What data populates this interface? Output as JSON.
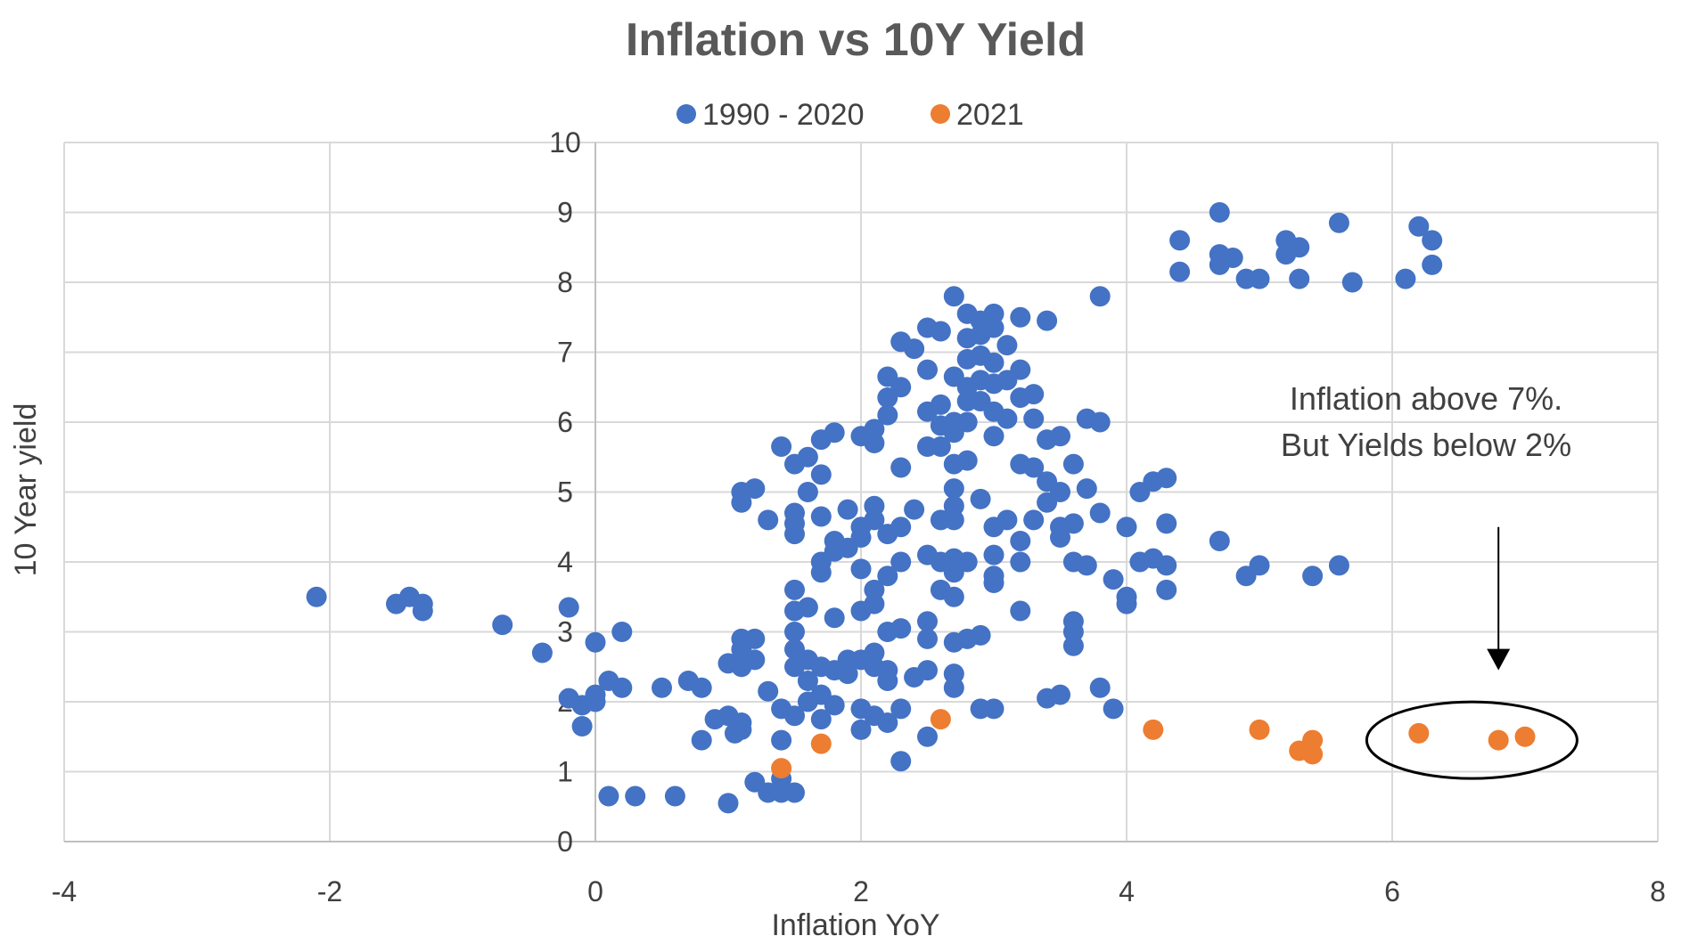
{
  "chart_data": {
    "type": "scatter",
    "title": "Inflation vs 10Y Yield",
    "xlabel": "Inflation YoY",
    "ylabel": "10 Year yield",
    "xlim": [
      -4,
      8
    ],
    "ylim": [
      0,
      10
    ],
    "x_ticks": [
      -4,
      -2,
      0,
      2,
      4,
      6,
      8
    ],
    "y_ticks": [
      0,
      1,
      2,
      3,
      4,
      5,
      6,
      7,
      8,
      9,
      10
    ],
    "grid": true,
    "legend_position": "top",
    "annotation": {
      "lines": [
        "Inflation above 7%.",
        "But Yields below 2%"
      ],
      "circle_center": [
        6.6,
        1.45
      ],
      "arrow_x": 6.8,
      "arrow_from_y": 4.5,
      "arrow_to_y": 2.45
    },
    "series": [
      {
        "name": "1990 - 2020",
        "color": "#4472C4",
        "points": [
          [
            -2.1,
            3.5
          ],
          [
            -1.5,
            3.4
          ],
          [
            -1.4,
            3.5
          ],
          [
            -1.3,
            3.4
          ],
          [
            -1.3,
            3.3
          ],
          [
            -0.7,
            3.1
          ],
          [
            -0.4,
            2.7
          ],
          [
            -0.2,
            3.35
          ],
          [
            -0.2,
            2.05
          ],
          [
            -0.1,
            1.95
          ],
          [
            -0.1,
            1.65
          ],
          [
            0,
            2.0
          ],
          [
            0,
            2.85
          ],
          [
            0,
            2.1
          ],
          [
            0.1,
            2.3
          ],
          [
            0.1,
            0.65
          ],
          [
            0.2,
            2.2
          ],
          [
            0.2,
            3.0
          ],
          [
            0.3,
            0.65
          ],
          [
            0.5,
            2.2
          ],
          [
            0.6,
            0.65
          ],
          [
            0.7,
            2.3
          ],
          [
            0.8,
            2.2
          ],
          [
            0.8,
            1.45
          ],
          [
            0.9,
            1.75
          ],
          [
            1.0,
            1.8
          ],
          [
            1.0,
            0.55
          ],
          [
            1.0,
            2.55
          ],
          [
            1.05,
            1.55
          ],
          [
            1.1,
            5.0
          ],
          [
            1.1,
            4.85
          ],
          [
            1.1,
            2.9
          ],
          [
            1.1,
            2.75
          ],
          [
            1.1,
            2.5
          ],
          [
            1.1,
            1.6
          ],
          [
            1.1,
            1.7
          ],
          [
            1.2,
            5.05
          ],
          [
            1.2,
            2.9
          ],
          [
            1.2,
            2.6
          ],
          [
            1.2,
            0.85
          ],
          [
            1.3,
            0.7
          ],
          [
            1.3,
            2.15
          ],
          [
            1.3,
            4.6
          ],
          [
            1.4,
            5.65
          ],
          [
            1.4,
            1.9
          ],
          [
            1.4,
            1.45
          ],
          [
            1.4,
            0.9
          ],
          [
            1.4,
            0.7
          ],
          [
            1.5,
            5.4
          ],
          [
            1.5,
            4.7
          ],
          [
            1.5,
            4.55
          ],
          [
            1.5,
            4.4
          ],
          [
            1.5,
            3.6
          ],
          [
            1.5,
            3.3
          ],
          [
            1.5,
            3.0
          ],
          [
            1.5,
            2.75
          ],
          [
            1.5,
            2.5
          ],
          [
            1.5,
            1.8
          ],
          [
            1.5,
            0.7
          ],
          [
            1.6,
            5.5
          ],
          [
            1.6,
            5.0
          ],
          [
            1.6,
            3.35
          ],
          [
            1.6,
            2.6
          ],
          [
            1.6,
            2.3
          ],
          [
            1.6,
            2.0
          ],
          [
            1.7,
            5.75
          ],
          [
            1.7,
            5.25
          ],
          [
            1.7,
            4.65
          ],
          [
            1.7,
            4.0
          ],
          [
            1.7,
            3.85
          ],
          [
            1.7,
            2.5
          ],
          [
            1.7,
            2.1
          ],
          [
            1.7,
            1.75
          ],
          [
            1.8,
            5.85
          ],
          [
            1.8,
            4.3
          ],
          [
            1.8,
            4.15
          ],
          [
            1.8,
            3.2
          ],
          [
            1.8,
            2.45
          ],
          [
            1.8,
            1.95
          ],
          [
            1.9,
            4.75
          ],
          [
            1.9,
            4.2
          ],
          [
            1.9,
            2.6
          ],
          [
            1.9,
            2.4
          ],
          [
            2.0,
            5.8
          ],
          [
            2.0,
            4.5
          ],
          [
            2.0,
            4.35
          ],
          [
            2.0,
            3.9
          ],
          [
            2.0,
            3.3
          ],
          [
            2.0,
            2.6
          ],
          [
            2.0,
            1.9
          ],
          [
            2.0,
            1.6
          ],
          [
            2.1,
            5.9
          ],
          [
            2.1,
            5.7
          ],
          [
            2.1,
            4.8
          ],
          [
            2.1,
            4.6
          ],
          [
            2.1,
            3.6
          ],
          [
            2.1,
            3.4
          ],
          [
            2.1,
            2.7
          ],
          [
            2.1,
            2.5
          ],
          [
            2.1,
            1.8
          ],
          [
            2.2,
            6.65
          ],
          [
            2.2,
            6.35
          ],
          [
            2.2,
            6.1
          ],
          [
            2.2,
            4.4
          ],
          [
            2.2,
            3.8
          ],
          [
            2.2,
            3.0
          ],
          [
            2.2,
            2.45
          ],
          [
            2.2,
            2.3
          ],
          [
            2.2,
            1.7
          ],
          [
            2.3,
            7.15
          ],
          [
            2.3,
            6.5
          ],
          [
            2.3,
            5.35
          ],
          [
            2.3,
            4.5
          ],
          [
            2.3,
            4.0
          ],
          [
            2.3,
            3.05
          ],
          [
            2.3,
            1.9
          ],
          [
            2.3,
            1.15
          ],
          [
            2.4,
            7.05
          ],
          [
            2.4,
            4.75
          ],
          [
            2.4,
            2.35
          ],
          [
            2.5,
            7.35
          ],
          [
            2.5,
            6.75
          ],
          [
            2.5,
            6.15
          ],
          [
            2.5,
            5.65
          ],
          [
            2.5,
            4.1
          ],
          [
            2.5,
            3.15
          ],
          [
            2.5,
            2.9
          ],
          [
            2.5,
            2.45
          ],
          [
            2.5,
            1.5
          ],
          [
            2.6,
            7.3
          ],
          [
            2.6,
            6.25
          ],
          [
            2.6,
            5.95
          ],
          [
            2.6,
            5.65
          ],
          [
            2.6,
            4.6
          ],
          [
            2.6,
            4.0
          ],
          [
            2.6,
            3.6
          ],
          [
            2.7,
            7.8
          ],
          [
            2.7,
            6.65
          ],
          [
            2.7,
            6.0
          ],
          [
            2.7,
            5.85
          ],
          [
            2.7,
            5.4
          ],
          [
            2.7,
            5.05
          ],
          [
            2.7,
            4.8
          ],
          [
            2.7,
            4.6
          ],
          [
            2.7,
            4.05
          ],
          [
            2.7,
            3.85
          ],
          [
            2.7,
            3.5
          ],
          [
            2.7,
            2.85
          ],
          [
            2.7,
            2.4
          ],
          [
            2.7,
            2.2
          ],
          [
            2.8,
            7.55
          ],
          [
            2.8,
            7.2
          ],
          [
            2.8,
            6.9
          ],
          [
            2.8,
            6.5
          ],
          [
            2.8,
            6.3
          ],
          [
            2.8,
            6.0
          ],
          [
            2.8,
            5.45
          ],
          [
            2.8,
            4.0
          ],
          [
            2.8,
            2.9
          ],
          [
            2.9,
            7.45
          ],
          [
            2.9,
            7.25
          ],
          [
            2.9,
            6.95
          ],
          [
            2.9,
            6.6
          ],
          [
            2.9,
            6.3
          ],
          [
            2.9,
            4.9
          ],
          [
            2.9,
            2.95
          ],
          [
            2.9,
            1.9
          ],
          [
            3.0,
            7.55
          ],
          [
            3.0,
            7.35
          ],
          [
            3.0,
            6.85
          ],
          [
            3.0,
            6.55
          ],
          [
            3.0,
            6.15
          ],
          [
            3.0,
            5.8
          ],
          [
            3.0,
            4.5
          ],
          [
            3.0,
            4.1
          ],
          [
            3.0,
            3.8
          ],
          [
            3.0,
            3.7
          ],
          [
            3.0,
            1.9
          ],
          [
            3.1,
            7.1
          ],
          [
            3.1,
            6.6
          ],
          [
            3.1,
            6.05
          ],
          [
            3.1,
            4.6
          ],
          [
            3.2,
            7.5
          ],
          [
            3.2,
            6.75
          ],
          [
            3.2,
            6.35
          ],
          [
            3.2,
            5.4
          ],
          [
            3.2,
            4.3
          ],
          [
            3.2,
            4.0
          ],
          [
            3.2,
            3.3
          ],
          [
            3.3,
            6.4
          ],
          [
            3.3,
            6.05
          ],
          [
            3.3,
            5.35
          ],
          [
            3.3,
            4.6
          ],
          [
            3.4,
            7.45
          ],
          [
            3.4,
            5.75
          ],
          [
            3.4,
            5.15
          ],
          [
            3.4,
            4.85
          ],
          [
            3.4,
            2.05
          ],
          [
            3.5,
            5.8
          ],
          [
            3.5,
            5.0
          ],
          [
            3.5,
            4.5
          ],
          [
            3.5,
            4.35
          ],
          [
            3.5,
            2.1
          ],
          [
            3.6,
            5.4
          ],
          [
            3.6,
            4.55
          ],
          [
            3.6,
            4.0
          ],
          [
            3.6,
            3.15
          ],
          [
            3.6,
            3.0
          ],
          [
            3.6,
            2.8
          ],
          [
            3.7,
            6.05
          ],
          [
            3.7,
            5.05
          ],
          [
            3.7,
            3.95
          ],
          [
            3.8,
            7.8
          ],
          [
            3.8,
            6.0
          ],
          [
            3.8,
            4.7
          ],
          [
            3.8,
            2.2
          ],
          [
            3.9,
            3.75
          ],
          [
            3.9,
            1.9
          ],
          [
            4.0,
            4.5
          ],
          [
            4.0,
            3.5
          ],
          [
            4.0,
            3.4
          ],
          [
            4.1,
            5.0
          ],
          [
            4.1,
            4.0
          ],
          [
            4.2,
            5.15
          ],
          [
            4.2,
            4.05
          ],
          [
            4.3,
            5.2
          ],
          [
            4.3,
            4.55
          ],
          [
            4.3,
            3.95
          ],
          [
            4.3,
            3.6
          ],
          [
            4.4,
            8.6
          ],
          [
            4.4,
            8.15
          ],
          [
            4.7,
            9.0
          ],
          [
            4.7,
            8.4
          ],
          [
            4.7,
            8.25
          ],
          [
            4.7,
            4.3
          ],
          [
            4.8,
            8.35
          ],
          [
            4.9,
            8.05
          ],
          [
            4.9,
            3.8
          ],
          [
            5.0,
            8.05
          ],
          [
            5.0,
            3.95
          ],
          [
            5.2,
            8.6
          ],
          [
            5.2,
            8.4
          ],
          [
            5.3,
            8.5
          ],
          [
            5.3,
            8.05
          ],
          [
            5.4,
            3.8
          ],
          [
            5.6,
            8.85
          ],
          [
            5.6,
            3.95
          ],
          [
            5.7,
            8.0
          ],
          [
            6.1,
            8.05
          ],
          [
            6.2,
            8.8
          ],
          [
            6.3,
            8.6
          ],
          [
            6.3,
            8.25
          ]
        ]
      },
      {
        "name": "2021",
        "color": "#ED7D31",
        "points": [
          [
            1.4,
            1.05
          ],
          [
            1.7,
            1.4
          ],
          [
            2.6,
            1.75
          ],
          [
            4.2,
            1.6
          ],
          [
            5.0,
            1.6
          ],
          [
            5.3,
            1.3
          ],
          [
            5.4,
            1.45
          ],
          [
            5.4,
            1.25
          ],
          [
            6.2,
            1.55
          ],
          [
            6.8,
            1.45
          ],
          [
            7.0,
            1.5
          ]
        ]
      }
    ]
  }
}
